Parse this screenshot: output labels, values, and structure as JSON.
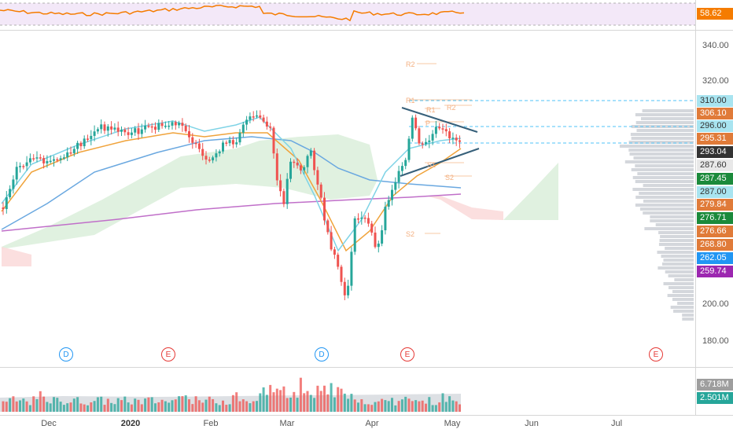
{
  "rsi": {
    "value": "58.62",
    "color": "#f57c00"
  },
  "price_axis": {
    "ticks": [
      "340.00",
      "320.00",
      "200.00",
      "180.00"
    ],
    "labels": [
      {
        "text": "310.00",
        "bg": "#a8e4f0",
        "fg": "#333333"
      },
      {
        "text": "306.10",
        "bg": "#e07b39",
        "fg": "#ffffff"
      },
      {
        "text": "296.00",
        "bg": "#a8e4f0",
        "fg": "#333333"
      },
      {
        "text": "295.31",
        "bg": "#e07b39",
        "fg": "#ffffff"
      },
      {
        "text": "293.04",
        "bg": "#333333",
        "fg": "#ffffff"
      },
      {
        "text": "287.60",
        "bg": "#e8e8e8",
        "fg": "#333333"
      },
      {
        "text": "287.45",
        "bg": "#1b8a3b",
        "fg": "#ffffff"
      },
      {
        "text": "287.00",
        "bg": "#a8e4f0",
        "fg": "#333333"
      },
      {
        "text": "279.84",
        "bg": "#e07b39",
        "fg": "#ffffff"
      },
      {
        "text": "276.71",
        "bg": "#1b8a3b",
        "fg": "#ffffff"
      },
      {
        "text": "276.66",
        "bg": "#e07b39",
        "fg": "#ffffff"
      },
      {
        "text": "268.80",
        "bg": "#e07b39",
        "fg": "#ffffff"
      },
      {
        "text": "262.05",
        "bg": "#2196f3",
        "fg": "#ffffff"
      },
      {
        "text": "259.74",
        "bg": "#9c27b0",
        "fg": "#ffffff"
      }
    ]
  },
  "volume_axis": {
    "labels": [
      {
        "text": "6.718M",
        "bg": "#9e9e9e",
        "fg": "#ffffff"
      },
      {
        "text": "2.501M",
        "bg": "#26a69a",
        "fg": "#ffffff"
      }
    ]
  },
  "time_axis": {
    "labels": [
      {
        "text": "Dec",
        "bold": false
      },
      {
        "text": "2020",
        "bold": true
      },
      {
        "text": "Feb",
        "bold": false
      },
      {
        "text": "Mar",
        "bold": false
      },
      {
        "text": "Apr",
        "bold": false
      },
      {
        "text": "May",
        "bold": false
      },
      {
        "text": "Jun",
        "bold": false
      },
      {
        "text": "Jul",
        "bold": false
      }
    ]
  },
  "events": [
    {
      "letter": "D",
      "type": "dividend",
      "color": "#2196f3"
    },
    {
      "letter": "E",
      "type": "earnings",
      "color": "#e53935"
    },
    {
      "letter": "D",
      "type": "dividend",
      "color": "#2196f3"
    },
    {
      "letter": "E",
      "type": "earnings",
      "color": "#e53935"
    },
    {
      "letter": "E",
      "type": "earnings",
      "color": "#e53935"
    }
  ],
  "pivots": [
    "R2",
    "R1",
    "R2",
    "R1",
    "P",
    "S1",
    "S2",
    "S2"
  ],
  "colors": {
    "up": "#26a69a",
    "down": "#ef5350",
    "ema_fast": "#7fd3e6",
    "ema_mid": "#f0a33b",
    "sma_blue": "#6aa8e0",
    "sma_purple": "#c06fc9",
    "cloud_green": "#d8eed8",
    "cloud_red": "#fbdcdc",
    "hline": "#4fc3f7",
    "trend": "#37607a"
  }
}
